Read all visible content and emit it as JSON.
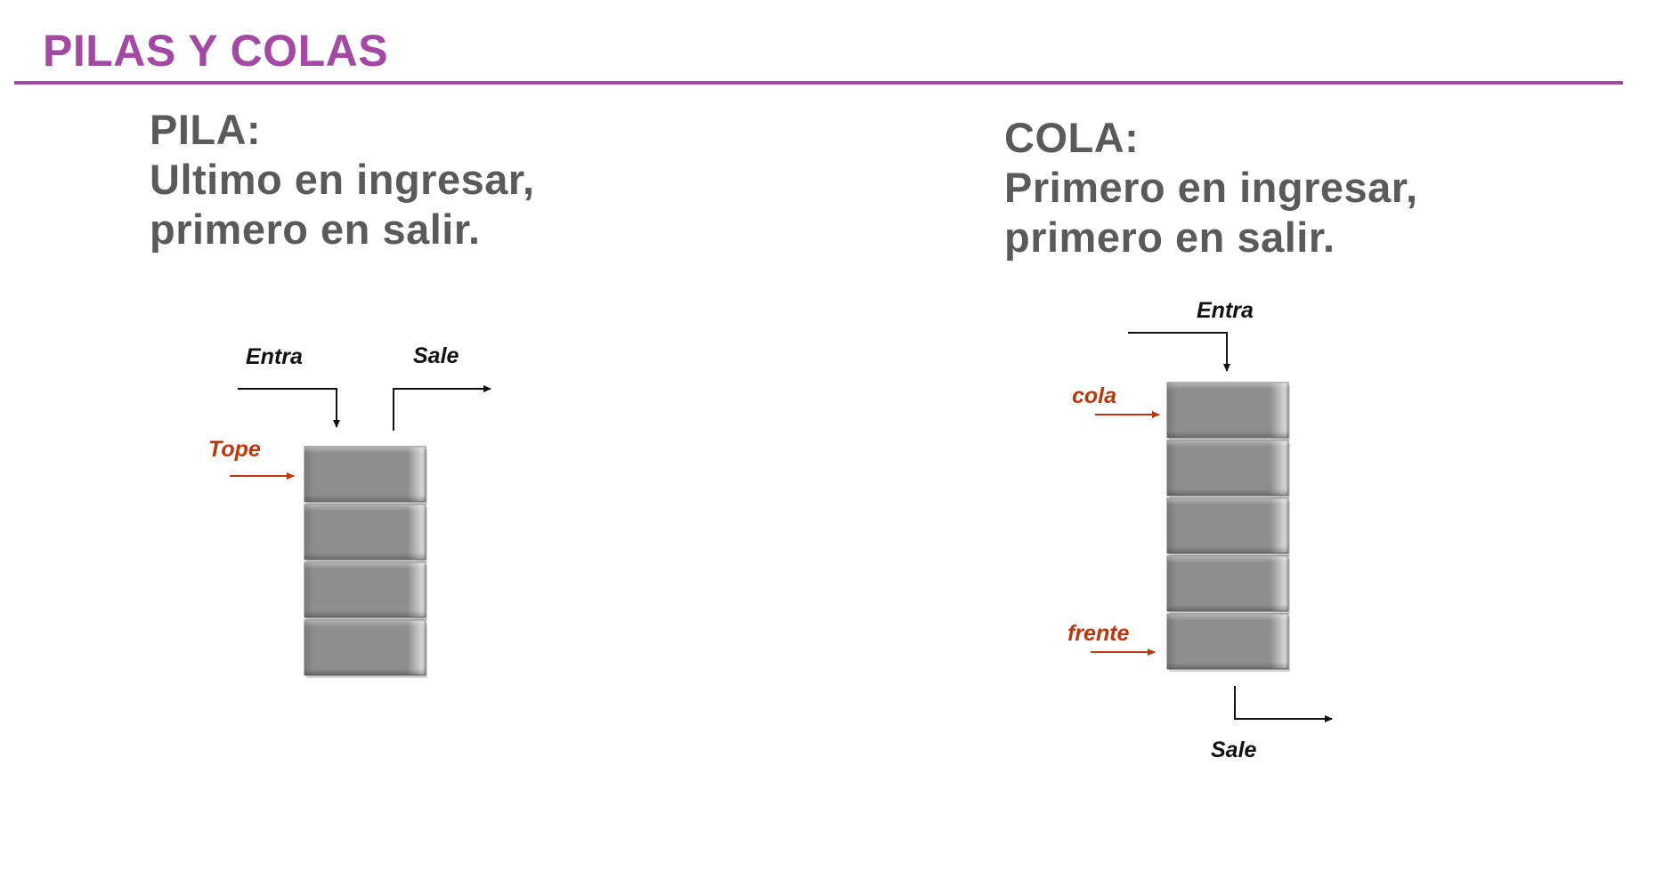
{
  "slide": {
    "title": "PILAS Y COLAS"
  },
  "pila": {
    "heading": "PILA:",
    "line1": "Ultimo en ingresar,",
    "line2": "primero en salir.",
    "labels": {
      "entra": "Entra",
      "sale": "Sale",
      "tope": "Tope"
    },
    "cell_count": 4
  },
  "cola": {
    "heading": "COLA:",
    "line1": "Primero en ingresar,",
    "line2": "primero en salir.",
    "labels": {
      "entra": "Entra",
      "cola": "cola",
      "frente": "frente",
      "sale": "Sale"
    },
    "cell_count": 5
  },
  "colors": {
    "title": "#a349a4",
    "body_text": "#5a5a5a",
    "pointer_label": "#c0360c",
    "cell_fill": "#8c8c8c"
  }
}
